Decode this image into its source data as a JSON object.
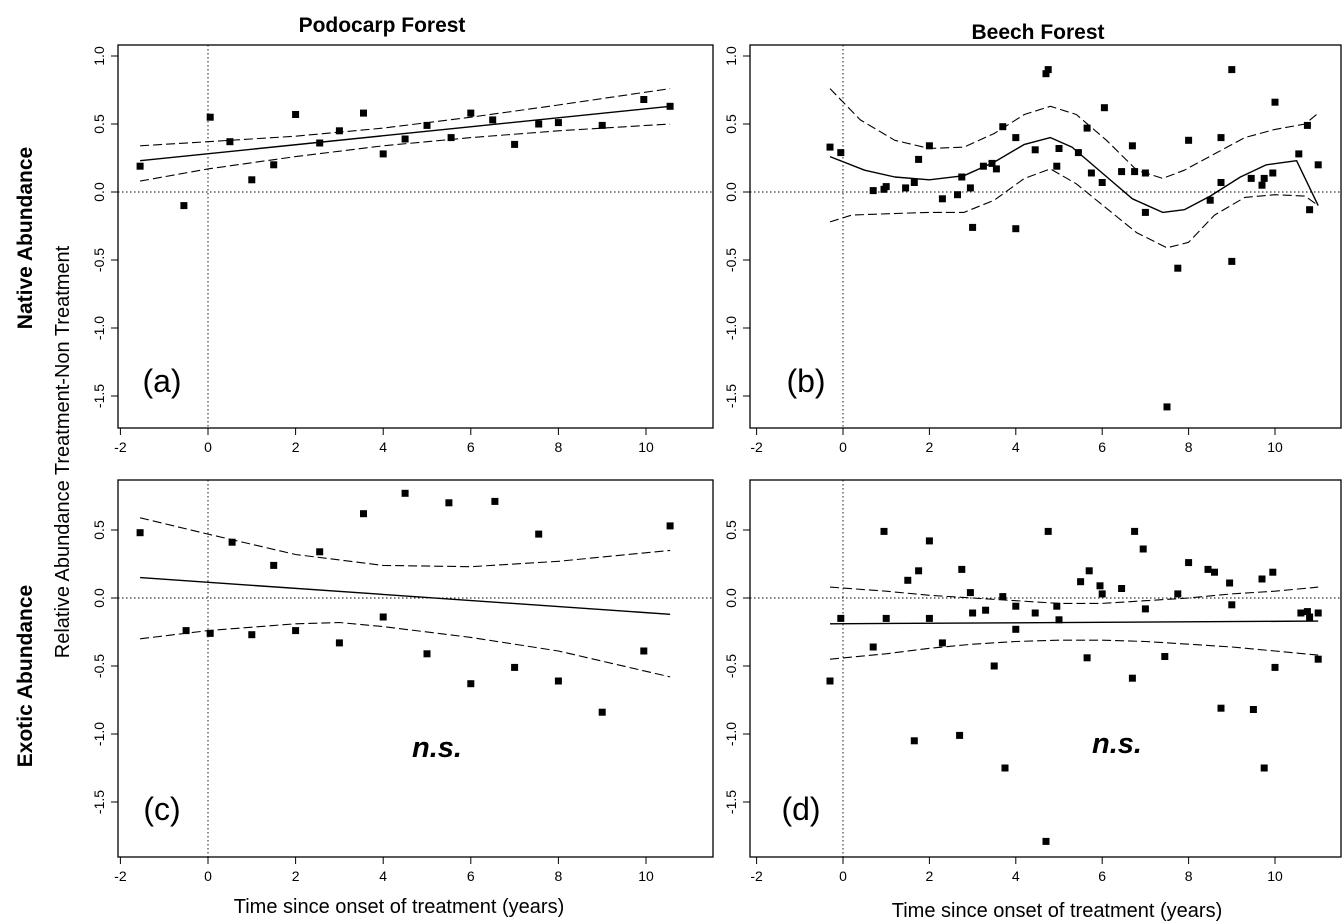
{
  "figure": {
    "col_titles": [
      "Podocarp Forest",
      "Beech Forest"
    ],
    "row_labels": [
      "Native Abundance",
      "Exotic Abundance"
    ],
    "y_title": "Relative Abundance Treatment-Non Treatment",
    "x_title": "Time since onset of treatment (years)"
  },
  "chart_data": [
    {
      "type": "scatter",
      "panel": "a",
      "tag": "(a)",
      "annotation": "",
      "xlim": [
        -2,
        11.5
      ],
      "ylim": [
        -1.7,
        1.0
      ],
      "xticks": [
        -2,
        0,
        2,
        4,
        6,
        8,
        10
      ],
      "yticks": [
        -1.5,
        -1.0,
        -0.5,
        0.0,
        0.5,
        1.0
      ],
      "x": [
        -1.55,
        -0.55,
        0.05,
        0.5,
        1.0,
        1.5,
        2.0,
        2.55,
        3.0,
        3.55,
        4.0,
        4.5,
        5.0,
        5.55,
        6.0,
        6.5,
        7.0,
        7.55,
        8.0,
        9.0,
        9.95,
        10.55
      ],
      "y": [
        0.19,
        -0.1,
        0.55,
        0.37,
        0.09,
        0.2,
        0.57,
        0.36,
        0.45,
        0.58,
        0.28,
        0.39,
        0.49,
        0.4,
        0.58,
        0.53,
        0.35,
        0.5,
        0.51,
        0.49,
        0.68,
        0.63
      ],
      "fit": {
        "x": [
          -1.55,
          10.55
        ],
        "y": [
          0.23,
          0.63
        ]
      },
      "ci_upper": {
        "x": [
          -1.55,
          0,
          2,
          4,
          6,
          8,
          10.55
        ],
        "y": [
          0.34,
          0.37,
          0.41,
          0.47,
          0.55,
          0.64,
          0.76
        ]
      },
      "ci_lower": {
        "x": [
          -1.55,
          0,
          2,
          4,
          6,
          8,
          10.55
        ],
        "y": [
          0.08,
          0.17,
          0.26,
          0.34,
          0.4,
          0.45,
          0.5
        ]
      }
    },
    {
      "type": "scatter",
      "panel": "b",
      "tag": "(b)",
      "annotation": "",
      "xlim": [
        -2,
        11.5
      ],
      "ylim": [
        -1.7,
        1.0
      ],
      "xticks": [
        -2,
        0,
        2,
        4,
        6,
        8,
        10
      ],
      "yticks": [
        -1.5,
        -1.0,
        -0.5,
        0.0,
        0.5,
        1.0
      ],
      "x": [
        -0.3,
        -0.05,
        0.7,
        0.95,
        1.0,
        1.45,
        1.65,
        1.75,
        2.0,
        2.3,
        2.65,
        2.75,
        2.95,
        3.0,
        3.25,
        3.45,
        3.55,
        3.7,
        4.0,
        4.0,
        4.45,
        4.7,
        4.75,
        4.95,
        5.0,
        5.45,
        5.65,
        5.75,
        6.0,
        6.05,
        6.45,
        6.7,
        6.75,
        7.0,
        7.0,
        7.5,
        7.75,
        8.0,
        8.5,
        8.75,
        8.75,
        9.0,
        9.0,
        9.45,
        9.7,
        9.75,
        9.95,
        10.0,
        10.55,
        10.75,
        10.8,
        11.0
      ],
      "y": [
        0.33,
        0.29,
        0.01,
        0.02,
        0.04,
        0.03,
        0.07,
        0.24,
        0.34,
        -0.05,
        -0.02,
        0.11,
        0.03,
        -0.26,
        0.19,
        0.21,
        0.17,
        0.48,
        -0.27,
        0.4,
        0.31,
        0.87,
        0.9,
        0.19,
        0.32,
        0.29,
        0.47,
        0.14,
        0.07,
        0.62,
        0.15,
        0.34,
        0.15,
        0.14,
        -0.15,
        -1.58,
        -0.56,
        0.38,
        -0.06,
        0.07,
        0.4,
        0.9,
        -0.51,
        0.1,
        0.05,
        0.1,
        0.14,
        0.66,
        0.28,
        0.49,
        -0.13,
        0.2
      ],
      "fit": {
        "x": [
          -0.3,
          0.5,
          1.2,
          2.0,
          2.8,
          3.5,
          4.2,
          4.8,
          5.3,
          6.0,
          6.7,
          7.4,
          7.9,
          8.5,
          9.2,
          9.8,
          10.5,
          11.0
        ],
        "y": [
          0.26,
          0.16,
          0.11,
          0.09,
          0.12,
          0.22,
          0.35,
          0.4,
          0.33,
          0.14,
          -0.05,
          -0.15,
          -0.13,
          -0.03,
          0.11,
          0.2,
          0.23,
          -0.1
        ]
      },
      "ci_upper": {
        "x": [
          -0.3,
          0.4,
          1.2,
          2.0,
          2.8,
          3.5,
          4.2,
          4.8,
          5.4,
          6.1,
          6.8,
          7.4,
          7.9,
          8.6,
          9.3,
          10.0,
          10.7,
          11.0
        ],
        "y": [
          0.76,
          0.53,
          0.38,
          0.32,
          0.33,
          0.43,
          0.57,
          0.63,
          0.57,
          0.38,
          0.16,
          0.1,
          0.16,
          0.28,
          0.4,
          0.46,
          0.5,
          0.58
        ]
      },
      "ci_lower": {
        "x": [
          -0.3,
          0.2,
          1.0,
          2.0,
          2.8,
          3.5,
          4.2,
          4.8,
          5.4,
          6.1,
          6.8,
          7.5,
          8.0,
          8.6,
          9.3,
          10.0,
          10.7,
          11.0
        ],
        "y": [
          -0.22,
          -0.17,
          -0.16,
          -0.15,
          -0.15,
          -0.06,
          0.1,
          0.17,
          0.06,
          -0.12,
          -0.3,
          -0.41,
          -0.37,
          -0.17,
          -0.04,
          -0.02,
          -0.03,
          -0.1
        ]
      }
    },
    {
      "type": "scatter",
      "panel": "c",
      "tag": "(c)",
      "annotation": "n.s.",
      "xlim": [
        -2,
        11.5
      ],
      "ylim": [
        -1.85,
        0.8
      ],
      "xticks": [
        -2,
        0,
        2,
        4,
        6,
        8,
        10
      ],
      "yticks": [
        -1.5,
        -1.0,
        -0.5,
        0.0,
        0.5
      ],
      "x": [
        -1.55,
        -0.5,
        0.05,
        0.55,
        1.0,
        1.5,
        2.0,
        2.55,
        3.0,
        3.55,
        4.0,
        4.5,
        5.0,
        5.5,
        6.0,
        6.55,
        7.0,
        7.55,
        8.0,
        9.0,
        9.95,
        10.55
      ],
      "y": [
        0.48,
        -0.24,
        -0.26,
        0.41,
        -0.27,
        0.24,
        -0.24,
        0.34,
        -0.33,
        0.62,
        -0.14,
        0.77,
        -0.41,
        0.7,
        -0.63,
        0.71,
        -0.51,
        0.47,
        -0.61,
        -0.84,
        -0.39,
        0.53
      ],
      "fit": {
        "x": [
          -1.55,
          10.55
        ],
        "y": [
          0.15,
          -0.12
        ]
      },
      "ci_upper": {
        "x": [
          -1.55,
          0,
          2,
          4,
          6,
          8,
          10.55
        ],
        "y": [
          0.59,
          0.47,
          0.32,
          0.24,
          0.23,
          0.27,
          0.35
        ]
      },
      "ci_lower": {
        "x": [
          -1.55,
          0,
          2,
          3,
          4,
          6,
          8,
          10.55
        ],
        "y": [
          -0.3,
          -0.24,
          -0.19,
          -0.18,
          -0.21,
          -0.29,
          -0.39,
          -0.58
        ]
      }
    },
    {
      "type": "scatter",
      "panel": "d",
      "tag": "(d)",
      "annotation": "n.s.",
      "xlim": [
        -2,
        11.5
      ],
      "ylim": [
        -1.85,
        0.8
      ],
      "xticks": [
        -2,
        0,
        2,
        4,
        6,
        8,
        10
      ],
      "yticks": [
        -1.5,
        -1.0,
        -0.5,
        0.0,
        0.5
      ],
      "x": [
        -0.3,
        -0.05,
        0.7,
        0.95,
        1.0,
        1.5,
        1.65,
        1.75,
        2.0,
        2.0,
        2.3,
        2.7,
        2.75,
        2.95,
        3.0,
        3.3,
        3.5,
        3.7,
        3.75,
        4.0,
        4.0,
        4.45,
        4.7,
        4.75,
        4.95,
        5.0,
        5.5,
        5.65,
        5.7,
        5.95,
        6.0,
        6.45,
        6.7,
        6.75,
        6.95,
        7.0,
        7.45,
        7.75,
        8.0,
        8.45,
        8.6,
        8.75,
        8.95,
        9.0,
        9.5,
        9.7,
        9.75,
        9.95,
        10.0,
        10.6,
        10.75,
        10.8,
        11.0,
        11.0
      ],
      "y": [
        -0.61,
        -0.15,
        -0.36,
        0.49,
        -0.15,
        0.13,
        -1.05,
        0.2,
        0.42,
        -0.15,
        -0.33,
        -1.01,
        0.21,
        0.04,
        -0.11,
        -0.09,
        -0.5,
        0.01,
        -1.25,
        -0.06,
        -0.23,
        -0.11,
        -1.79,
        0.49,
        -0.06,
        -0.16,
        0.12,
        -0.44,
        0.2,
        0.09,
        0.03,
        0.07,
        -0.59,
        0.49,
        0.36,
        -0.08,
        -0.43,
        0.03,
        0.26,
        0.21,
        0.19,
        -0.81,
        0.11,
        -0.05,
        -0.82,
        0.14,
        -1.25,
        0.19,
        -0.51,
        -0.11,
        -0.1,
        -0.14,
        -0.11,
        -0.45
      ],
      "fit": {
        "x": [
          -0.3,
          11.0
        ],
        "y": [
          -0.19,
          -0.17
        ]
      },
      "ci_upper": {
        "x": [
          -0.3,
          1,
          2,
          3,
          4,
          5,
          6,
          7,
          8,
          9,
          10,
          11.0
        ],
        "y": [
          0.08,
          0.05,
          0.02,
          0.0,
          -0.02,
          -0.04,
          -0.04,
          -0.02,
          0.0,
          0.03,
          0.05,
          0.08
        ]
      },
      "ci_lower": {
        "x": [
          -0.3,
          1,
          2,
          3,
          4,
          5,
          6,
          7,
          8,
          9,
          10,
          11.0
        ],
        "y": [
          -0.45,
          -0.41,
          -0.37,
          -0.34,
          -0.32,
          -0.31,
          -0.31,
          -0.32,
          -0.34,
          -0.36,
          -0.39,
          -0.42
        ]
      }
    }
  ]
}
